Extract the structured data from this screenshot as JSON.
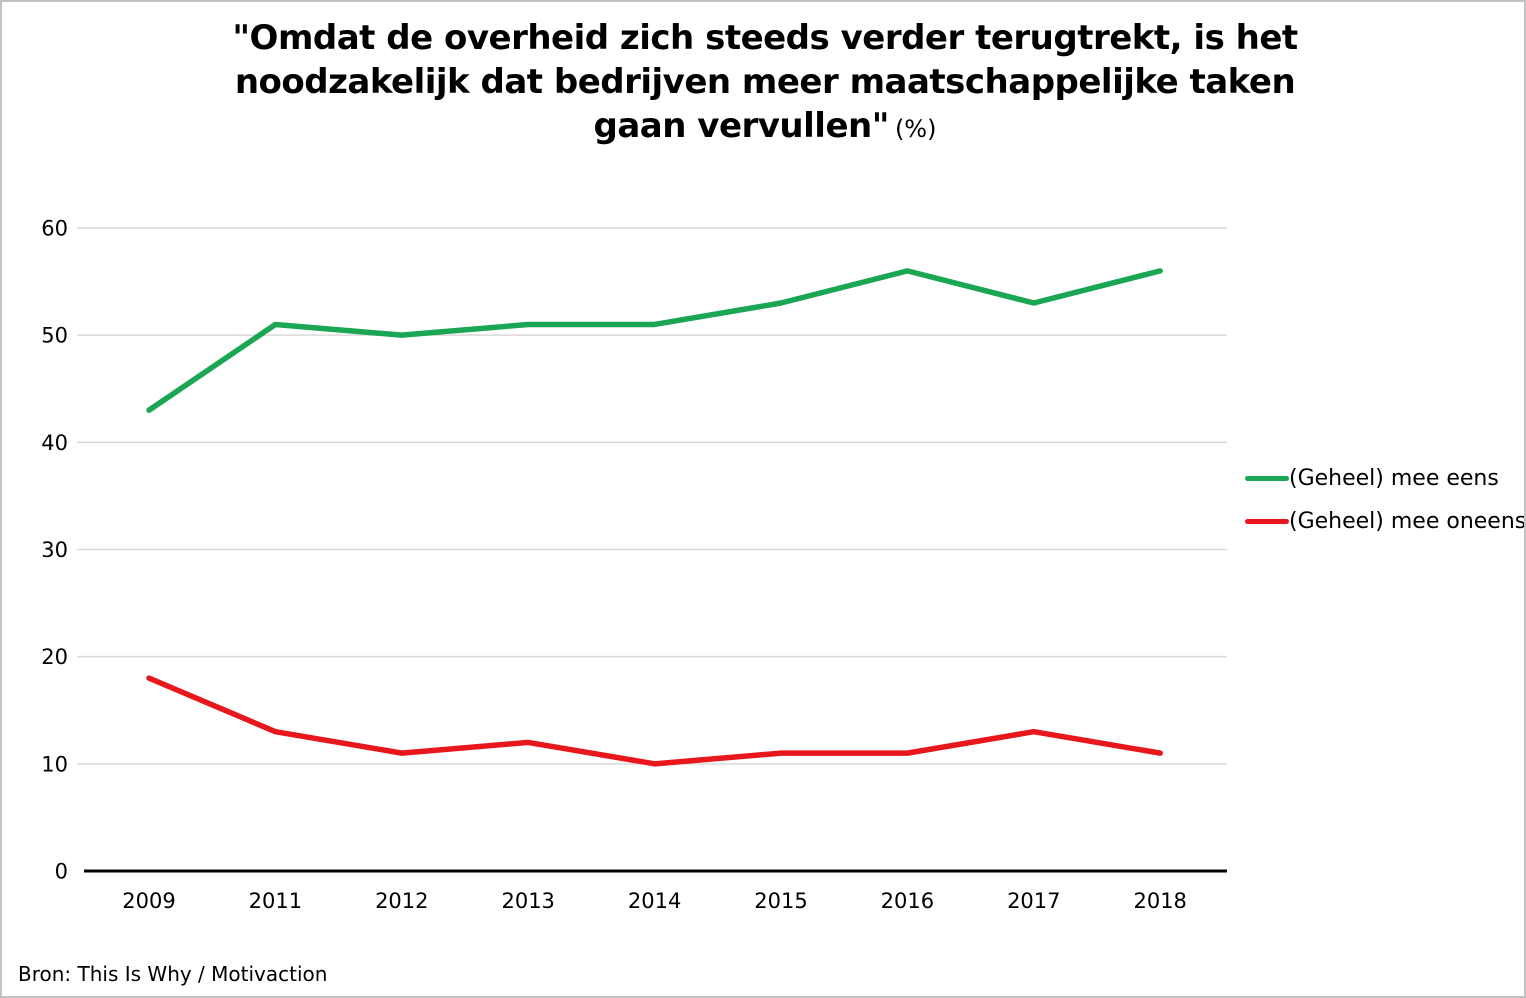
{
  "title": {
    "line1": "\"Omdat de overheid zich steeds verder terugtrekt, is het",
    "line2": "noodzakelijk dat bedrijven meer maatschappelijke taken",
    "line3": "gaan vervullen\"",
    "suffix": "(%)"
  },
  "source": "Bron: This Is Why / Motivaction",
  "chart_data": {
    "type": "line",
    "title": "\"Omdat de overheid zich steeds verder terugtrekt, is het noodzakelijk dat bedrijven meer maatschappelijke taken gaan vervullen\" (%)",
    "categories": [
      "2009",
      "2011",
      "2012",
      "2013",
      "2014",
      "2015",
      "2016",
      "2017",
      "2018"
    ],
    "series": [
      {
        "name": "(Geheel) mee eens",
        "color": "#1aa653",
        "values": [
          43,
          51,
          50,
          51,
          51,
          53,
          56,
          53,
          56
        ]
      },
      {
        "name": "(Geheel) mee oneens",
        "color": "#e8171c",
        "values": [
          18,
          13,
          11,
          12,
          10,
          11,
          11,
          13,
          11
        ]
      }
    ],
    "xlabel": "",
    "ylabel": "",
    "ylim": [
      0,
      60
    ],
    "y_ticks": [
      0,
      10,
      20,
      30,
      40,
      50,
      60
    ],
    "grid": "horizontal",
    "legend_position": "right",
    "colors": {
      "gridline": "#d9d9d9",
      "axis": "#000000",
      "tick_text": "#000000"
    }
  }
}
